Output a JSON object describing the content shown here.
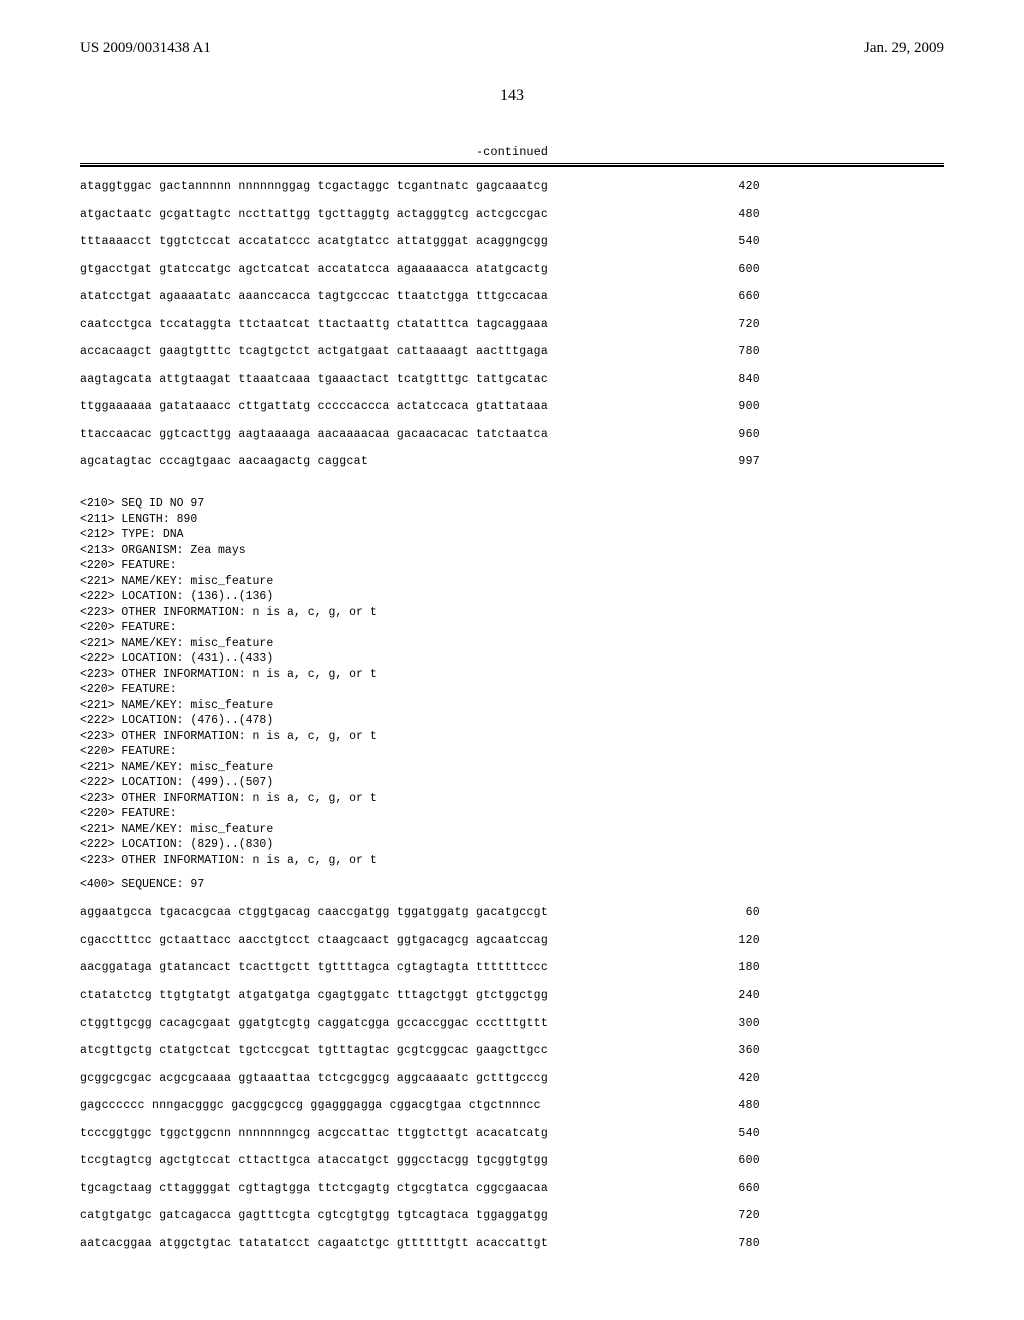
{
  "header": {
    "pub_number": "US 2009/0031438 A1",
    "pub_date": "Jan. 29, 2009"
  },
  "page_number": "143",
  "continued_label": "-continued",
  "sequence_block_1": {
    "lines": [
      {
        "seq": "ataggtggac gactannnnn nnnnnnggag tcgactaggc tcgantnatc gagcaaatcg",
        "num": "420"
      },
      {
        "seq": "atgactaatc gcgattagtc nccttattgg tgcttaggtg actagggtcg actcgccgac",
        "num": "480"
      },
      {
        "seq": "tttaaaacct tggtctccat accatatccc acatgtatcc attatgggat acaggngcgg",
        "num": "540"
      },
      {
        "seq": "gtgacctgat gtatccatgc agctcatcat accatatcca agaaaaacca atatgcactg",
        "num": "600"
      },
      {
        "seq": "atatcctgat agaaaatatc aaanccacca tagtgcccac ttaatctgga tttgccacaa",
        "num": "660"
      },
      {
        "seq": "caatcctgca tccataggta ttctaatcat ttactaattg ctatatttca tagcaggaaa",
        "num": "720"
      },
      {
        "seq": "accacaagct gaagtgtttc tcagtgctct actgatgaat cattaaaagt aactttgaga",
        "num": "780"
      },
      {
        "seq": "aagtagcata attgtaagat ttaaatcaaa tgaaactact tcatgtttgc tattgcatac",
        "num": "840"
      },
      {
        "seq": "ttggaaaaaa gatataaacc cttgattatg cccccaccca actatccaca gtattataaa",
        "num": "900"
      },
      {
        "seq": "ttaccaacac ggtcacttgg aagtaaaaga aacaaaacaa gacaacacac tatctaatca",
        "num": "960"
      },
      {
        "seq": "agcatagtac cccagtgaac aacaagactg caggcat",
        "num": "997"
      }
    ]
  },
  "feature_block": [
    "<210> SEQ ID NO 97",
    "<211> LENGTH: 890",
    "<212> TYPE: DNA",
    "<213> ORGANISM: Zea mays",
    "<220> FEATURE:",
    "<221> NAME/KEY: misc_feature",
    "<222> LOCATION: (136)..(136)",
    "<223> OTHER INFORMATION: n is a, c, g, or t",
    "<220> FEATURE:",
    "<221> NAME/KEY: misc_feature",
    "<222> LOCATION: (431)..(433)",
    "<223> OTHER INFORMATION: n is a, c, g, or t",
    "<220> FEATURE:",
    "<221> NAME/KEY: misc_feature",
    "<222> LOCATION: (476)..(478)",
    "<223> OTHER INFORMATION: n is a, c, g, or t",
    "<220> FEATURE:",
    "<221> NAME/KEY: misc_feature",
    "<222> LOCATION: (499)..(507)",
    "<223> OTHER INFORMATION: n is a, c, g, or t",
    "<220> FEATURE:",
    "<221> NAME/KEY: misc_feature",
    "<222> LOCATION: (829)..(830)",
    "<223> OTHER INFORMATION: n is a, c, g, or t"
  ],
  "sequence_label": "<400> SEQUENCE: 97",
  "sequence_block_2": {
    "lines": [
      {
        "seq": "aggaatgcca tgacacgcaa ctggtgacag caaccgatgg tggatggatg gacatgccgt",
        "num": "60"
      },
      {
        "seq": "cgacctttcc gctaattacc aacctgtcct ctaagcaact ggtgacagcg agcaatccag",
        "num": "120"
      },
      {
        "seq": "aacggataga gtatancact tcacttgctt tgttttagca cgtagtagta tttttttccc",
        "num": "180"
      },
      {
        "seq": "ctatatctcg ttgtgtatgt atgatgatga cgagtggatc tttagctggt gtctggctgg",
        "num": "240"
      },
      {
        "seq": "ctggttgcgg cacagcgaat ggatgtcgtg caggatcgga gccaccggac ccctttgttt",
        "num": "300"
      },
      {
        "seq": "atcgttgctg ctatgctcat tgctccgcat tgtttagtac gcgtcggcac gaagcttgcc",
        "num": "360"
      },
      {
        "seq": "gcggcgcgac acgcgcaaaa ggtaaattaa tctcgcggcg aggcaaaatc gctttgcccg",
        "num": "420"
      },
      {
        "seq": "gagcccccc nnngacgggc gacggcgccg ggagggagga cggacgtgaa ctgctnnncc",
        "num": "480"
      },
      {
        "seq": "tcccggtggc tggctggcnn nnnnnnngcg acgccattac ttggtcttgt acacatcatg",
        "num": "540"
      },
      {
        "seq": "tccgtagtcg agctgtccat cttacttgca ataccatgct gggcctacgg tgcggtgtgg",
        "num": "600"
      },
      {
        "seq": "tgcagctaag cttaggggat cgttagtgga ttctcgagtg ctgcgtatca cggcgaacaa",
        "num": "660"
      },
      {
        "seq": "catgtgatgc gatcagacca gagtttcgta cgtcgtgtgg tgtcagtaca tggaggatgg",
        "num": "720"
      },
      {
        "seq": "aatcacggaa atggctgtac tatatatcct cagaatctgc gttttttgtt acaccattgt",
        "num": "780"
      }
    ]
  }
}
